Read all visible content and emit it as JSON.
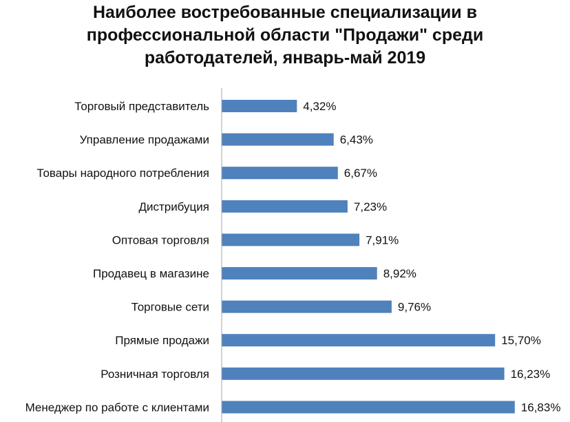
{
  "chart_data": {
    "type": "bar",
    "orientation": "horizontal",
    "title_lines": [
      "Наиболее востребованные специализации в",
      "профессиональной области \"Продажи\" среди",
      "работодателей, январь-май 2019"
    ],
    "categories": [
      "Торговый представитель",
      "Управление продажами",
      "Товары народного потребления",
      "Дистрибуция",
      "Оптовая торговля",
      "Продавец в магазине",
      "Торговые сети",
      "Прямые продажи",
      "Розничная  торговля",
      "Менеджер по работе с клиентами"
    ],
    "values": [
      4.32,
      6.43,
      6.67,
      7.23,
      7.91,
      8.92,
      9.76,
      15.7,
      16.23,
      16.83
    ],
    "value_labels": [
      "4,32%",
      "6,43%",
      "6,67%",
      "7,23%",
      "7,91%",
      "8,92%",
      "9,76%",
      "15,70%",
      "16,23%",
      "16,83%"
    ],
    "xlim": [
      0,
      17
    ],
    "grid": false,
    "legend": "none",
    "bar_color": "#4f81bd",
    "axis_color": "#a6a6a6"
  }
}
